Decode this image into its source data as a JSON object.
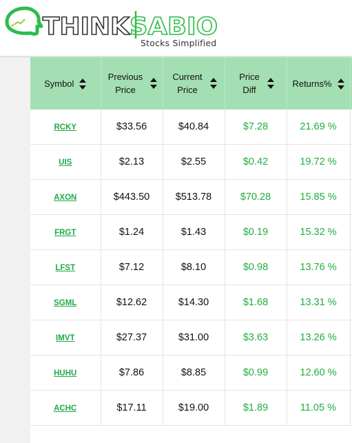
{
  "brand": {
    "name": "THINKSABIO",
    "tagline": "Stocks Simplified",
    "accent_color": "#2ebd4a"
  },
  "table": {
    "columns": [
      {
        "label": "Symbol",
        "sortable": true
      },
      {
        "label": "Previous Price",
        "sortable": true
      },
      {
        "label": "Current Price",
        "sortable": true
      },
      {
        "label": "Price Diff",
        "sortable": true
      },
      {
        "label": "Returns%",
        "sortable": true
      }
    ],
    "rows": [
      {
        "symbol": "RCKY",
        "previous": "$33.56",
        "current": "$40.84",
        "diff": "$7.28",
        "returns": "21.69 %"
      },
      {
        "symbol": "UIS",
        "previous": "$2.13",
        "current": "$2.55",
        "diff": "$0.42",
        "returns": "19.72 %"
      },
      {
        "symbol": "AXON",
        "previous": "$443.50",
        "current": "$513.78",
        "diff": "$70.28",
        "returns": "15.85 %"
      },
      {
        "symbol": "FRGT",
        "previous": "$1.24",
        "current": "$1.43",
        "diff": "$0.19",
        "returns": "15.32 %"
      },
      {
        "symbol": "LFST",
        "previous": "$7.12",
        "current": "$8.10",
        "diff": "$0.98",
        "returns": "13.76 %"
      },
      {
        "symbol": "SGML",
        "previous": "$12.62",
        "current": "$14.30",
        "diff": "$1.68",
        "returns": "13.31 %"
      },
      {
        "symbol": "IMVT",
        "previous": "$27.37",
        "current": "$31.00",
        "diff": "$3.63",
        "returns": "13.26 %"
      },
      {
        "symbol": "HUHU",
        "previous": "$7.86",
        "current": "$8.85",
        "diff": "$0.99",
        "returns": "12.60 %"
      },
      {
        "symbol": "ACHC",
        "previous": "$17.11",
        "current": "$19.00",
        "diff": "$1.89",
        "returns": "11.05 %"
      }
    ]
  }
}
